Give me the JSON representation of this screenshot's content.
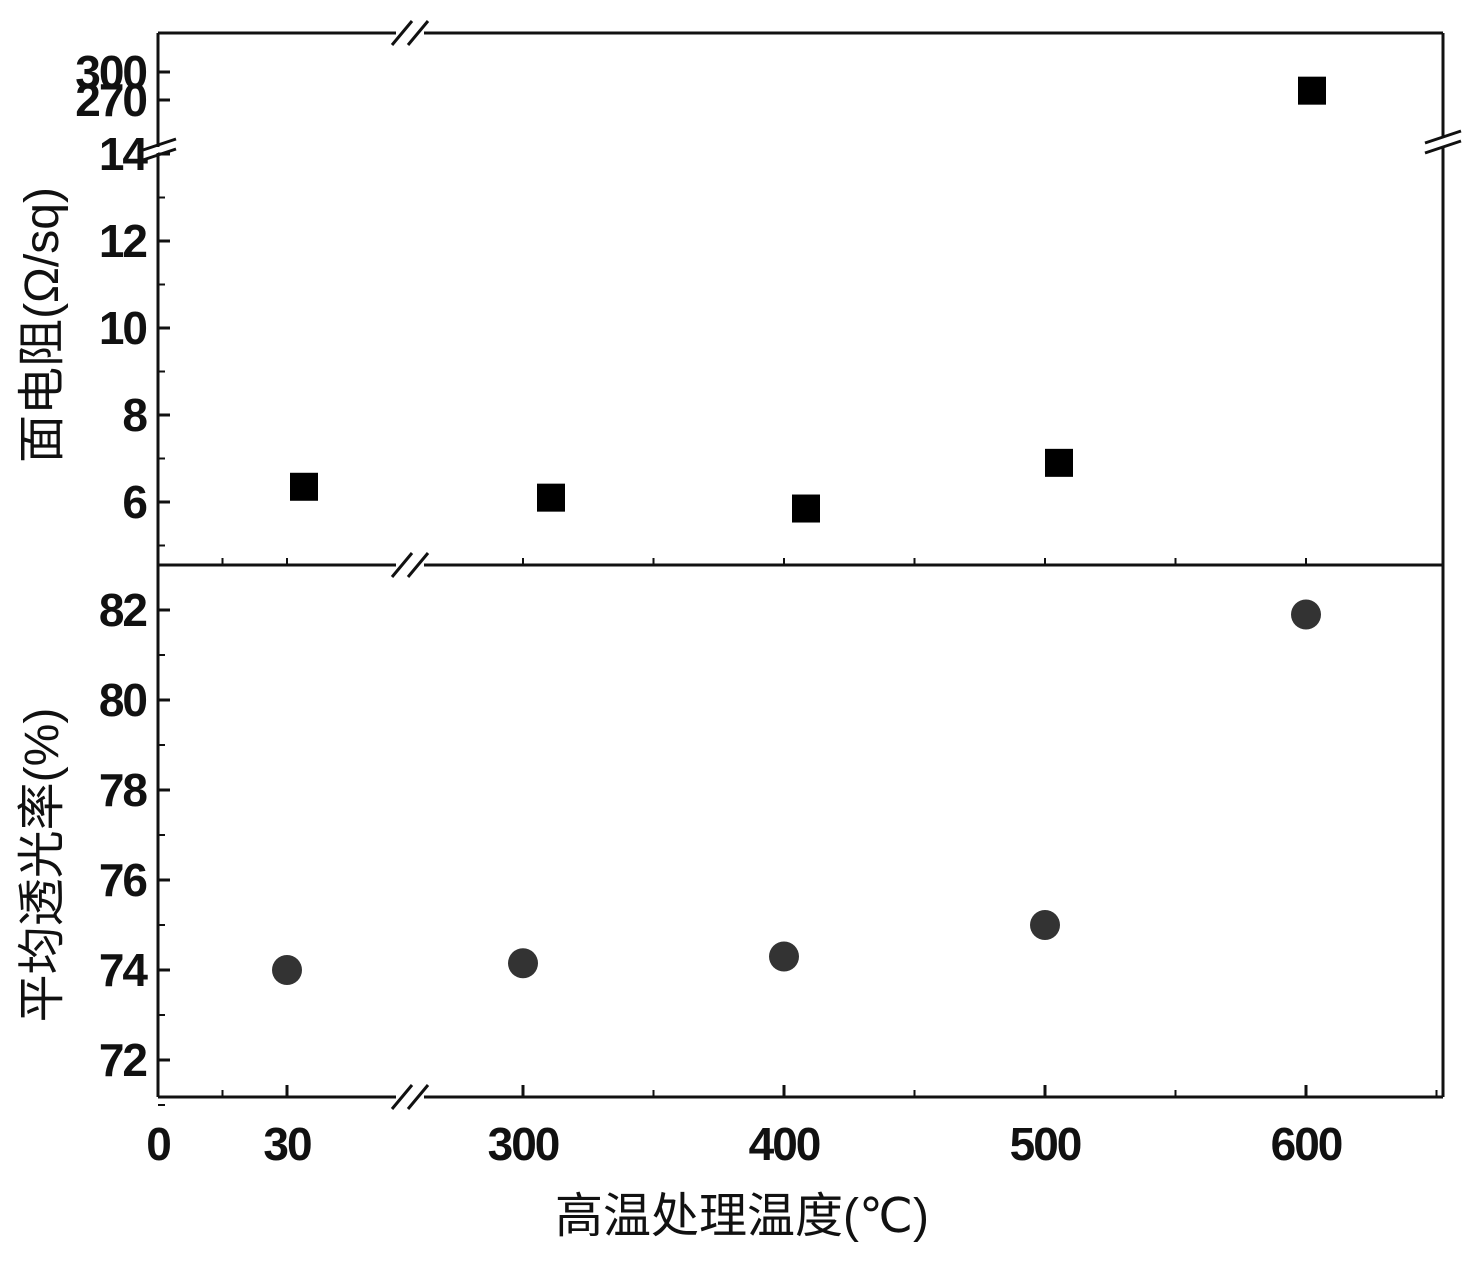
{
  "chart_data": {
    "type": "scatter",
    "x_axis": {
      "label": "高温处理温度(℃)",
      "tick_labels": [
        "0",
        "30",
        "300",
        "400",
        "500",
        "600"
      ],
      "broken": true,
      "break_between": [
        30,
        300
      ]
    },
    "panels": [
      {
        "ylabel": "面电阻(Ω/sq)",
        "y_tick_labels": [
          "6",
          "8",
          "10",
          "12",
          "14",
          "270",
          "300"
        ],
        "y_break": [
          14,
          270
        ],
        "marker": "square",
        "color": "#000000",
        "series": [
          {
            "x": [
              30,
              300,
              400,
              500,
              600
            ],
            "y": [
              6.35,
              6.1,
              5.85,
              6.9,
              280
            ]
          }
        ]
      },
      {
        "ylabel": "平均透光率(%)",
        "y_tick_labels": [
          "72",
          "74",
          "76",
          "78",
          "80",
          "82"
        ],
        "ylim": [
          71,
          83
        ],
        "marker": "circle",
        "color": "#333333",
        "series": [
          {
            "x": [
              30,
              300,
              400,
              500,
              600
            ],
            "y": [
              74.0,
              74.15,
              74.3,
              75.0,
              81.9
            ]
          }
        ]
      }
    ]
  }
}
